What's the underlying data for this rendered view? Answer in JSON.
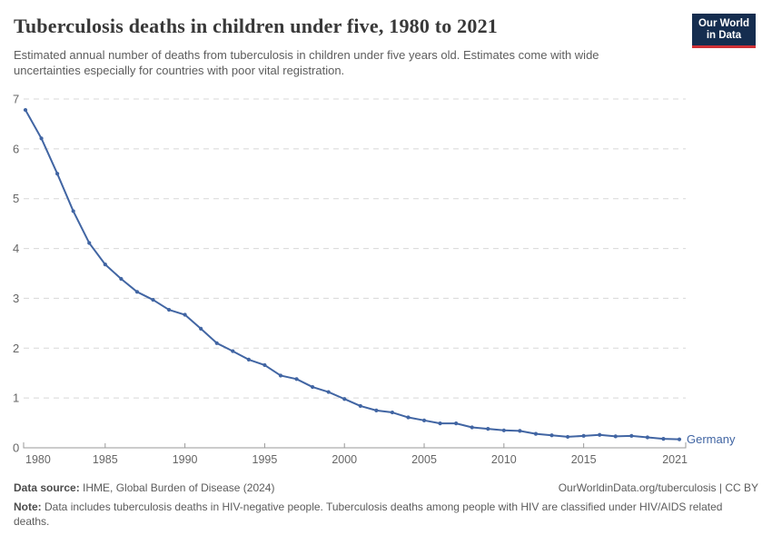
{
  "header": {
    "title": "Tuberculosis deaths in children under five, 1980 to 2021",
    "subtitle": "Estimated annual number of deaths from tuberculosis in children under five years old. Estimates come with wide uncertainties especially for countries with poor vital registration.",
    "logo": {
      "line1": "Our World",
      "line2": "in Data"
    }
  },
  "chart_data": {
    "type": "line",
    "title": "Tuberculosis deaths in children under five, 1980 to 2021",
    "xlabel": "",
    "ylabel": "",
    "xlim": [
      1980,
      2021
    ],
    "ylim": [
      0,
      7
    ],
    "xticks": [
      1980,
      1985,
      1990,
      1995,
      2000,
      2005,
      2010,
      2015,
      2021
    ],
    "yticks": [
      0,
      1,
      2,
      3,
      4,
      5,
      6,
      7
    ],
    "grid": "horizontal-dashed",
    "legend_position": "end-of-line-label",
    "x": [
      1980,
      1981,
      1982,
      1983,
      1984,
      1985,
      1986,
      1987,
      1988,
      1989,
      1990,
      1991,
      1992,
      1993,
      1994,
      1995,
      1996,
      1997,
      1998,
      1999,
      2000,
      2001,
      2002,
      2003,
      2004,
      2005,
      2006,
      2007,
      2008,
      2009,
      2010,
      2011,
      2012,
      2013,
      2014,
      2015,
      2016,
      2017,
      2018,
      2019,
      2020,
      2021
    ],
    "series": [
      {
        "name": "Germany",
        "color": "#4165a3",
        "values": [
          6.78,
          6.21,
          5.5,
          4.75,
          4.11,
          3.68,
          3.39,
          3.13,
          2.97,
          2.77,
          2.67,
          2.39,
          2.1,
          1.94,
          1.77,
          1.66,
          1.45,
          1.38,
          1.22,
          1.12,
          0.98,
          0.84,
          0.75,
          0.71,
          0.61,
          0.55,
          0.49,
          0.49,
          0.41,
          0.38,
          0.35,
          0.34,
          0.28,
          0.25,
          0.22,
          0.24,
          0.26,
          0.23,
          0.24,
          0.21,
          0.18,
          0.17
        ]
      }
    ]
  },
  "footer": {
    "source_label": "Data source:",
    "source_text": " IHME, Global Burden of Disease (2024)",
    "link": "OurWorldinData.org/tuberculosis | CC BY",
    "note_label": "Note:",
    "note_text": " Data includes tuberculosis deaths in HIV-negative people. Tuberculosis deaths among people with HIV are classified under HIV/AIDS related deaths."
  },
  "colors": {
    "line": "#4165a3",
    "grid": "#d8d8d8",
    "axis": "#9a9a9a",
    "tick_text": "#666666",
    "title_text": "#383838",
    "subtitle_text": "#5d5d5d",
    "footer_text": "#5c5c5c",
    "logo_bg": "#152d4f",
    "logo_red": "#cf3035"
  }
}
